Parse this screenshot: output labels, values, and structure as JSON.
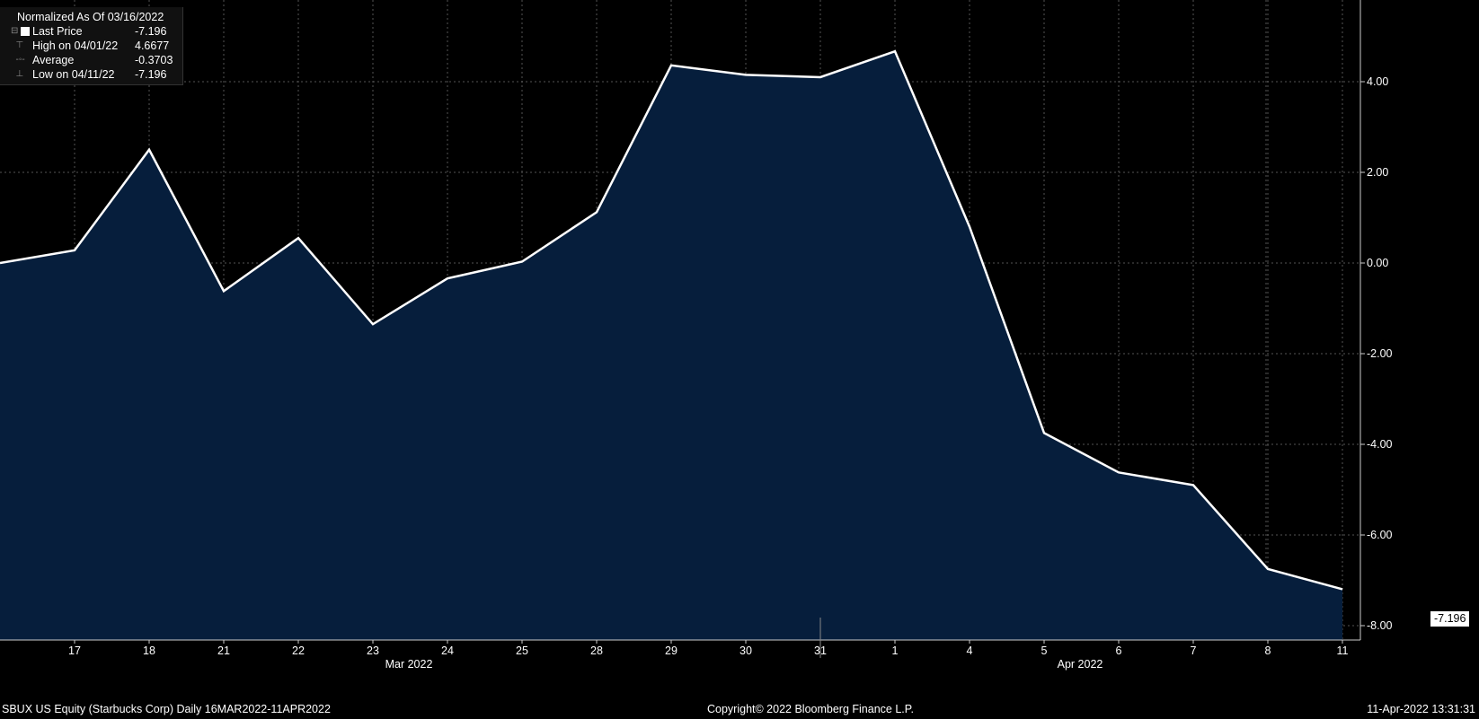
{
  "legend": {
    "header": "Normalized As Of 03/16/2022",
    "rows": [
      {
        "label": "Last Price",
        "value": "-7.196"
      },
      {
        "label": "High on 04/01/22",
        "value": "4.6677"
      },
      {
        "label": "Average",
        "value": "-0.3703"
      },
      {
        "label": "Low on 04/11/22",
        "value": "-7.196"
      }
    ]
  },
  "footer": {
    "left": "SBUX US Equity (Starbucks Corp)  Daily 16MAR2022-11APR2022",
    "center": "Copyright© 2022 Bloomberg Finance L.P.",
    "right": "11-Apr-2022 13:31:31"
  },
  "last_value_label": "-7.196",
  "colors": {
    "background": "#000000",
    "area_fill": "#061e3c",
    "line": "#ffffff",
    "grid": "#555555"
  },
  "chart_data": {
    "type": "area",
    "x": [
      "16",
      "17",
      "18",
      "21",
      "22",
      "23",
      "24",
      "25",
      "28",
      "29",
      "30",
      "31",
      "1",
      "4",
      "5",
      "6",
      "7",
      "8",
      "11"
    ],
    "x_tick_labels": [
      "17",
      "18",
      "21",
      "22",
      "23",
      "24",
      "25",
      "28",
      "29",
      "30",
      "31",
      "1",
      "4",
      "5",
      "6",
      "7",
      "8",
      "11"
    ],
    "month_labels": [
      {
        "label": "Mar 2022",
        "at": "23"
      },
      {
        "label": "Apr 2022",
        "at": "5"
      }
    ],
    "series": [
      {
        "values": [
          0.0,
          0.28,
          2.5,
          -0.62,
          0.55,
          -1.35,
          -0.34,
          0.03,
          1.12,
          4.36,
          4.15,
          4.1,
          4.67,
          0.8,
          -3.75,
          -4.62,
          -4.9,
          -6.75,
          -7.196
        ]
      }
    ],
    "yticks": [
      4.0,
      2.0,
      0.0,
      -2.0,
      -4.0,
      -6.0,
      -8.0
    ],
    "ytick_labels": [
      "4.00",
      "2.00",
      "0.00",
      "-2.00",
      "-4.00",
      "-6.00",
      "-8.00"
    ],
    "ylim": [
      -8.4,
      5.8
    ],
    "grid": true,
    "y_axis_side": "right"
  }
}
